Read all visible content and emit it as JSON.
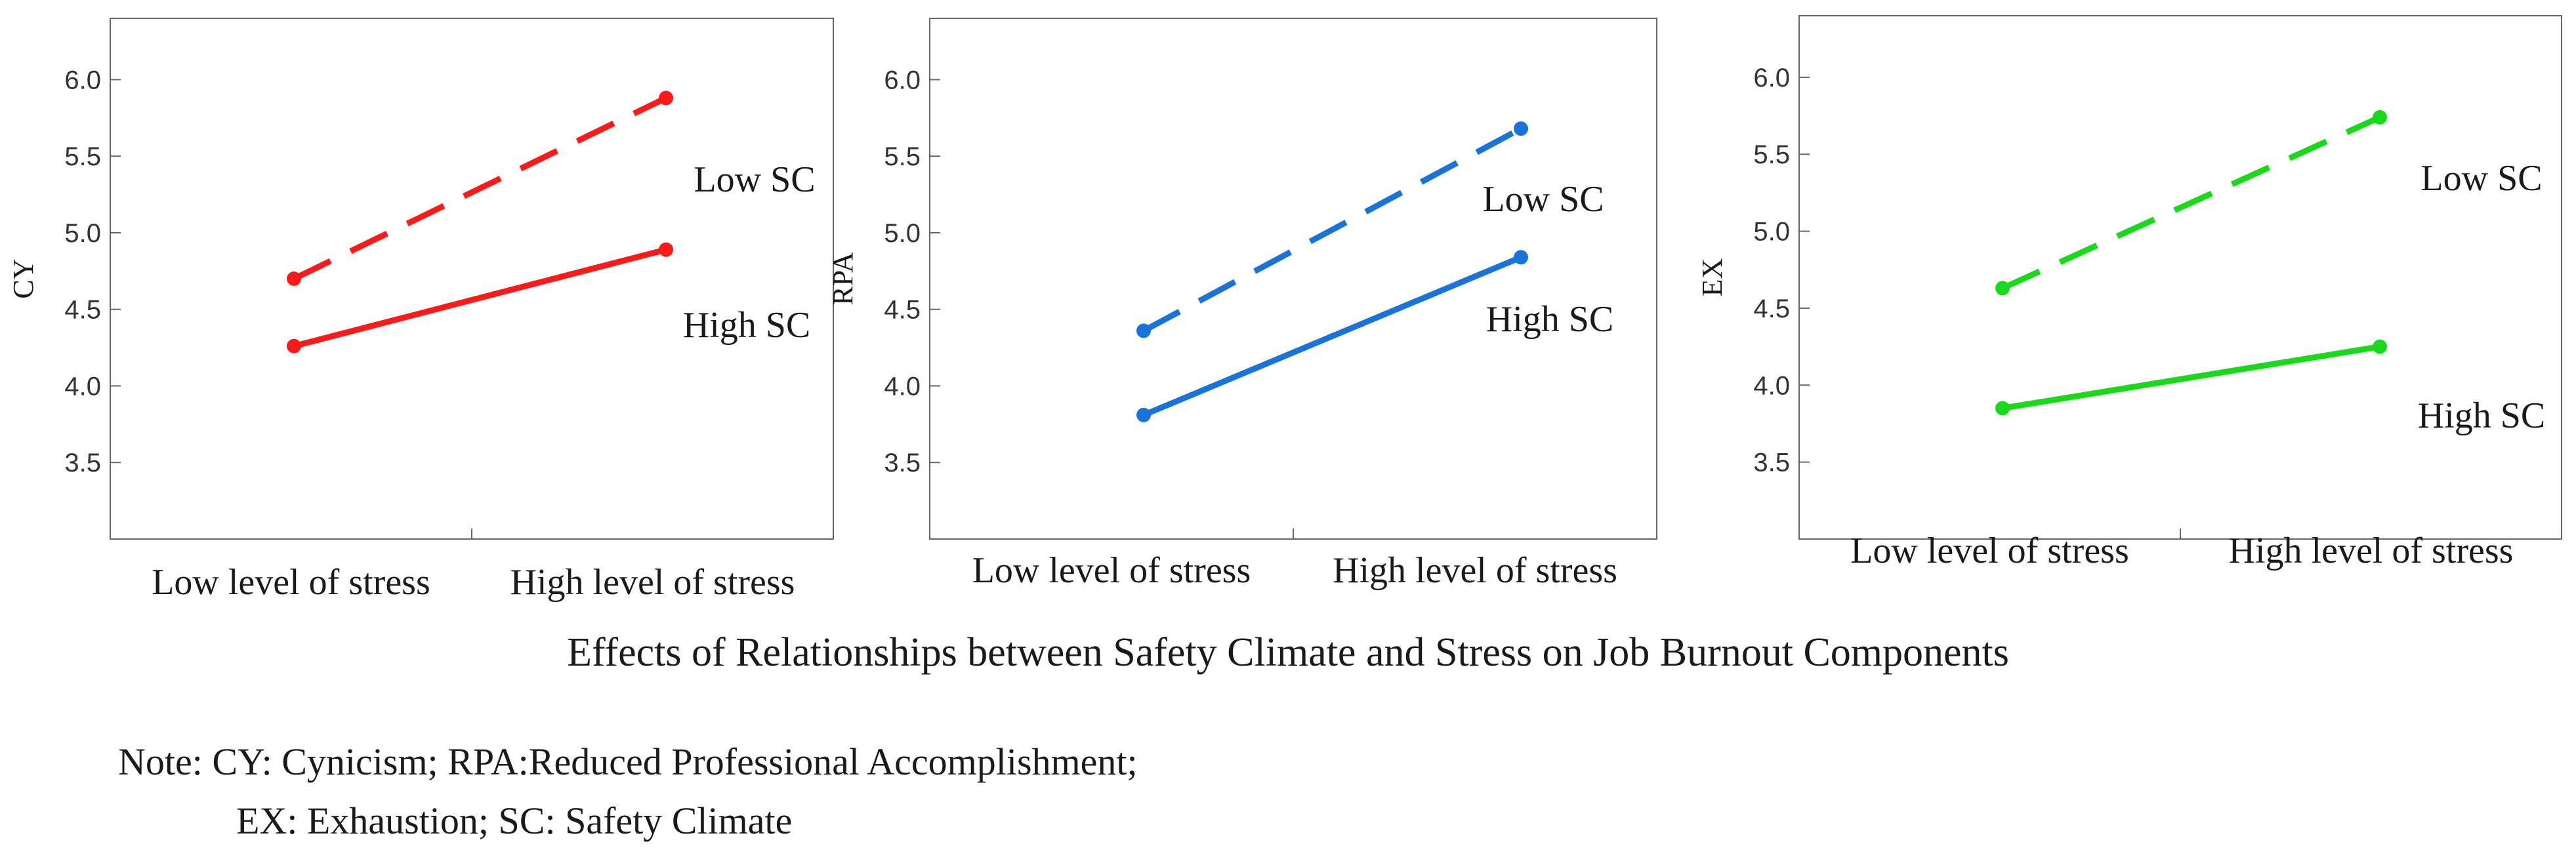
{
  "caption": "Effects of  Relationships between Safety Climate and Stress on Job Burnout Components",
  "note": {
    "line1": "Note: CY: Cynicism; RPA:Reduced Professional Accomplishment;",
    "line2": "EX: Exhaustion; SC: Safety Climate"
  },
  "chart_data": [
    {
      "type": "line",
      "ylabel": "CY",
      "xlabel": "",
      "categories": [
        "Low level of stress",
        "High level of stress"
      ],
      "ylim": [
        3.0,
        6.4
      ],
      "yticks": [
        3.5,
        4.0,
        4.5,
        5.0,
        5.5,
        6.0
      ],
      "grid": false,
      "color": "#ff1a1a",
      "series": [
        {
          "name": "Low SC",
          "values": [
            4.7,
            5.88
          ],
          "dash": true
        },
        {
          "name": "High SC",
          "values": [
            4.26,
            4.89
          ],
          "dash": false
        }
      ]
    },
    {
      "type": "line",
      "ylabel": "RPA",
      "xlabel": "",
      "categories": [
        "Low level of stress",
        "High level of stress"
      ],
      "ylim": [
        3.0,
        6.4
      ],
      "yticks": [
        3.5,
        4.0,
        4.5,
        5.0,
        5.5,
        6.0
      ],
      "grid": false,
      "color": "#1a73d9",
      "series": [
        {
          "name": "Low SC",
          "values": [
            4.36,
            5.68
          ],
          "dash": true
        },
        {
          "name": "High SC",
          "values": [
            3.81,
            4.84
          ],
          "dash": false
        }
      ]
    },
    {
      "type": "line",
      "ylabel": "EX",
      "xlabel": "",
      "categories": [
        "Low level of stress",
        "High level of stress"
      ],
      "ylim": [
        3.0,
        6.4
      ],
      "yticks": [
        3.5,
        4.0,
        4.5,
        5.0,
        5.5,
        6.0
      ],
      "grid": false,
      "color": "#1ad91a",
      "series": [
        {
          "name": "Low SC",
          "values": [
            4.63,
            5.74
          ],
          "dash": true
        },
        {
          "name": "High SC",
          "values": [
            3.85,
            4.25
          ],
          "dash": false
        }
      ]
    }
  ]
}
